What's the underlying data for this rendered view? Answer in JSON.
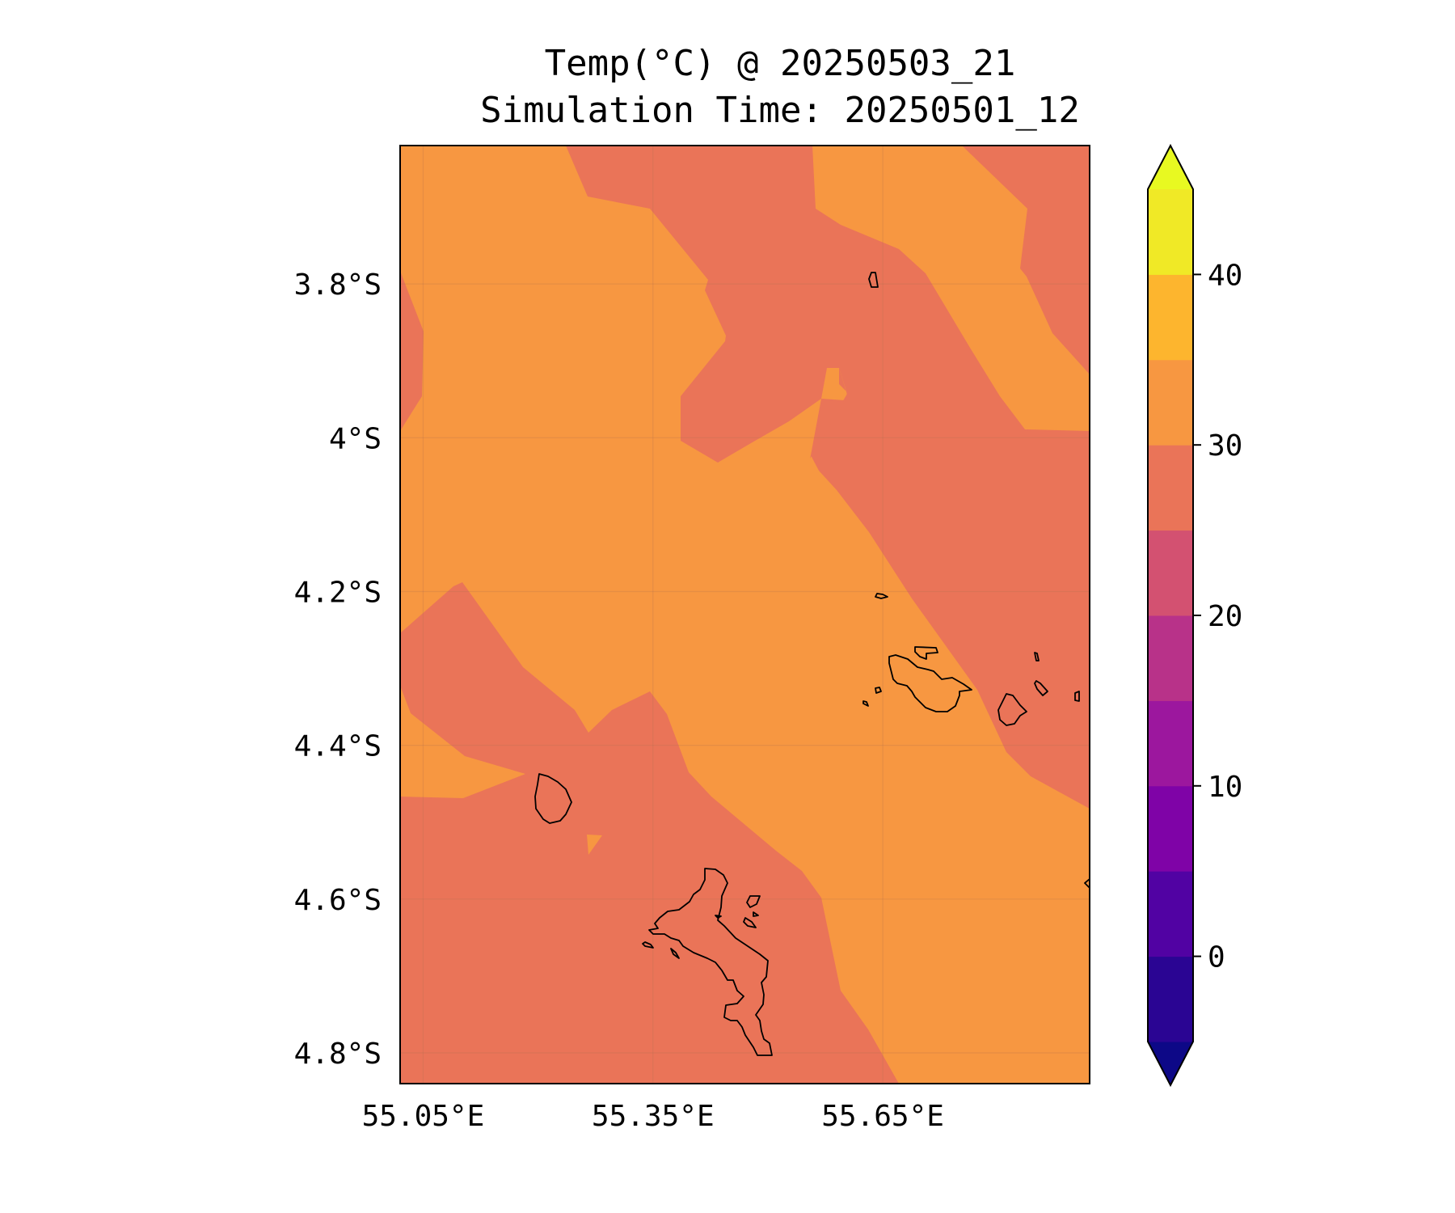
{
  "title": {
    "line1": "Temp(°C) @ 20250503_21",
    "line2": "Simulation Time: 20250501_12"
  },
  "map": {
    "type": "filled-contour map",
    "x_ticks": [
      "55.05°E",
      "55.35°E",
      "55.65°E"
    ],
    "y_ticks": [
      "3.8°S",
      "4°S",
      "4.2°S",
      "4.4°S",
      "4.6°S",
      "4.8°S"
    ],
    "extent": {
      "lon": [
        55.02,
        55.92
      ],
      "lat": [
        -4.84,
        -3.62
      ]
    },
    "grid": true,
    "coastlines": true,
    "region_colors": {
      "25-30": "#ea7458",
      "30-35": "#f79741"
    }
  },
  "colorbar": {
    "ticks": [
      "0",
      "10",
      "20",
      "30",
      "40"
    ],
    "levels": [
      -5,
      0,
      5,
      10,
      15,
      20,
      25,
      30,
      35,
      40,
      45
    ],
    "extend": "both",
    "colors": [
      "#0d0887",
      "#2a0593",
      "#5102a3",
      "#7f03a7",
      "#9c179e",
      "#b83289",
      "#d35171",
      "#ea7458",
      "#f79741",
      "#fdb52e",
      "#f0e926",
      "#e8f921"
    ]
  }
}
